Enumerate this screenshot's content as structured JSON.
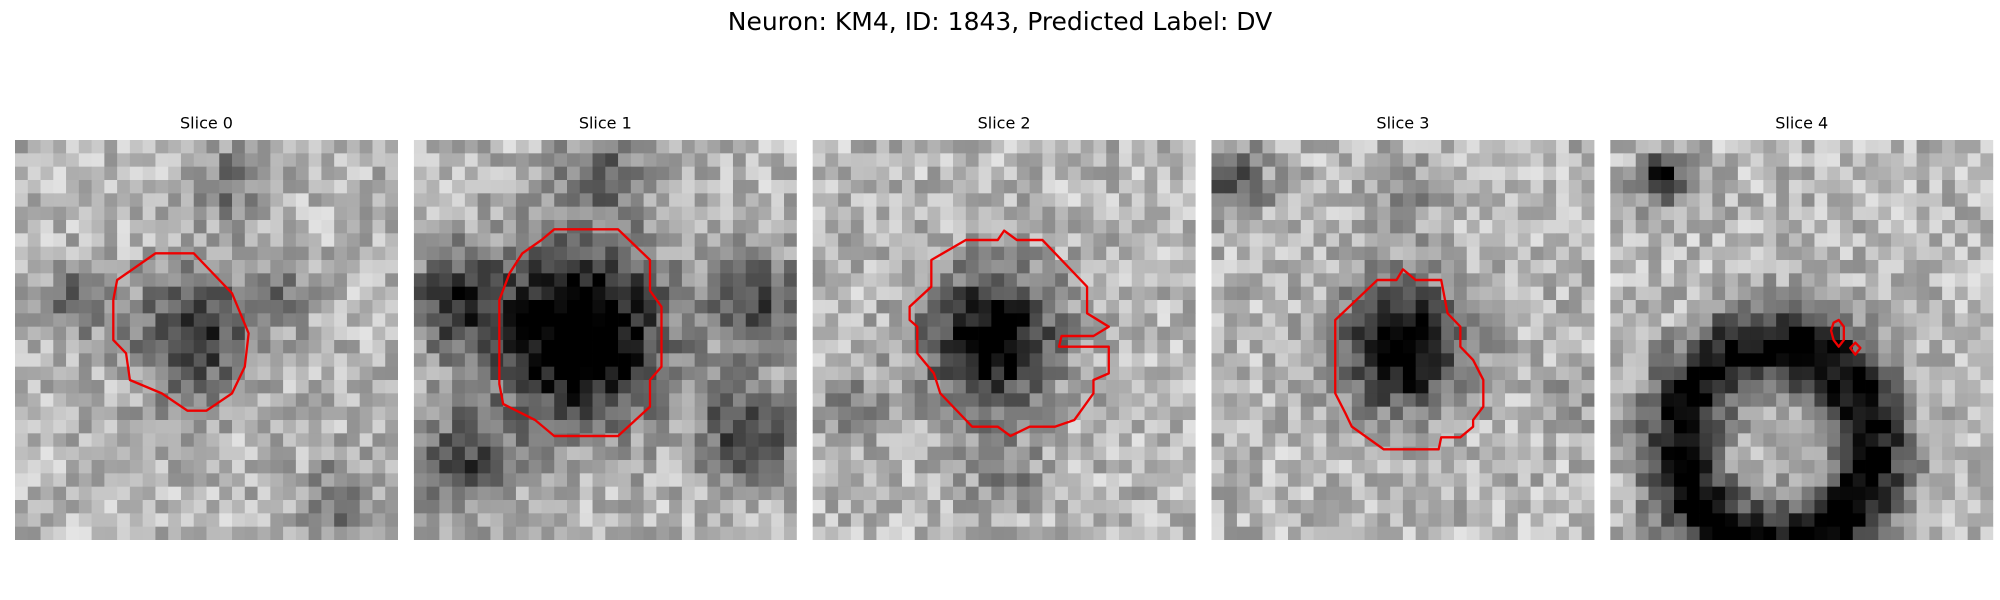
{
  "title": "Neuron: KM4, ID: 1843, Predicted Label: DV",
  "panels": [
    {
      "title": "Slice 0"
    },
    {
      "title": "Slice 1"
    },
    {
      "title": "Slice 2"
    },
    {
      "title": "Slice 3"
    },
    {
      "title": "Slice 4"
    }
  ]
}
